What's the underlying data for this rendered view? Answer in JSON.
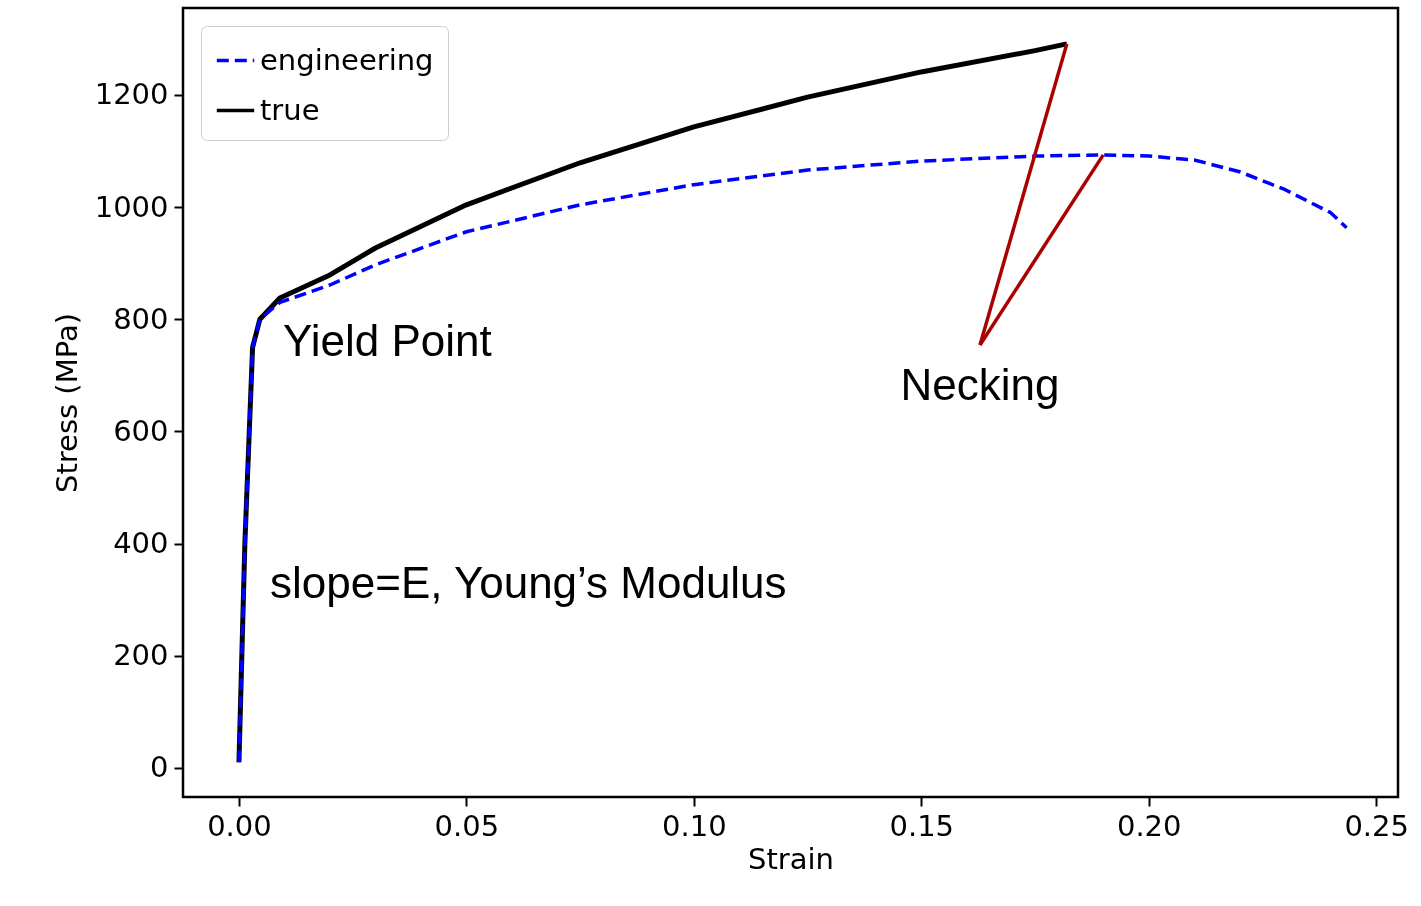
{
  "chart_data": {
    "type": "line",
    "xlabel": "Strain",
    "ylabel": "Stress (MPa)",
    "xlim": [
      -0.0123,
      0.2548
    ],
    "ylim": [
      -52,
      1355
    ],
    "xticks": [
      {
        "value": 0,
        "label": "0.00"
      },
      {
        "value": 0.05,
        "label": "0.05"
      },
      {
        "value": 0.1,
        "label": "0.10"
      },
      {
        "value": 0.15,
        "label": "0.15"
      },
      {
        "value": 0.2,
        "label": "0.20"
      },
      {
        "value": 0.25,
        "label": "0.25"
      }
    ],
    "yticks": [
      0,
      200,
      400,
      600,
      800,
      1000,
      1200
    ],
    "legend": "top left",
    "grid": false,
    "series": [
      {
        "name": "engineering",
        "color": "#0000ff",
        "line_style": "dashed",
        "x": [
          0,
          0.0013,
          0.003,
          0.0046,
          0.009,
          0.02,
          0.03,
          0.05,
          0.075,
          0.1,
          0.125,
          0.15,
          0.175,
          0.19,
          0.2,
          0.21,
          0.22,
          0.23,
          0.24,
          0.2435
        ],
        "values": [
          10,
          400,
          750,
          800,
          830,
          861,
          897,
          956,
          1004,
          1040,
          1066,
          1082,
          1091,
          1093,
          1091,
          1084,
          1063,
          1031,
          990,
          963
        ]
      },
      {
        "name": "true",
        "color": "#000000",
        "line_style": "solid",
        "x": [
          0,
          0.0013,
          0.003,
          0.0046,
          0.009,
          0.02,
          0.03,
          0.05,
          0.075,
          0.1,
          0.125,
          0.15,
          0.175,
          0.182
        ],
        "values": [
          10,
          400,
          750,
          800,
          838,
          879,
          927,
          1004,
          1079,
          1143,
          1196,
          1241,
          1279,
          1291
        ]
      }
    ],
    "annotations": [
      "Yield Point",
      "slope=E, Young’s Modulus",
      {
        "text": "Necking",
        "x": 0.19,
        "y": 1093
      }
    ]
  }
}
